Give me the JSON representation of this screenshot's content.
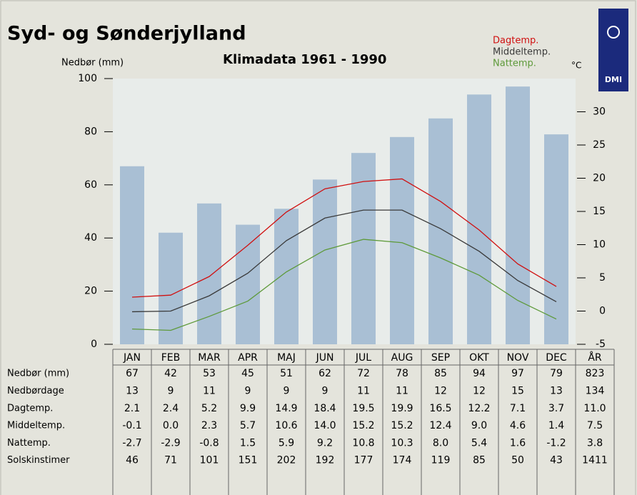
{
  "chart_data": {
    "type": "bar-line",
    "title": "Syd- og Sønderjylland",
    "subtitle": "Klimadata 1961 - 1990",
    "ylabel": "Nedbør (mm)",
    "y2label": "°C",
    "logo": "DMI",
    "categories": [
      "JAN",
      "FEB",
      "MAR",
      "APR",
      "MAJ",
      "JUN",
      "JUL",
      "AUG",
      "SEP",
      "OKT",
      "NOV",
      "DEC"
    ],
    "bars": {
      "color": "#a9bfd4",
      "axis": "y",
      "values": [
        67,
        42,
        53,
        45,
        51,
        62,
        72,
        78,
        85,
        94,
        97,
        79
      ]
    },
    "series": [
      {
        "name": "Dagtemp.",
        "color": "#d01010",
        "axis": "y2",
        "values": [
          2.1,
          2.4,
          5.2,
          9.9,
          14.9,
          18.4,
          19.5,
          19.9,
          16.5,
          12.2,
          7.1,
          3.7
        ]
      },
      {
        "name": "Middeltemp.",
        "color": "#3a3a3a",
        "axis": "y2",
        "values": [
          -0.1,
          0.0,
          2.3,
          5.7,
          10.6,
          14.0,
          15.2,
          15.2,
          12.4,
          9.0,
          4.6,
          1.4
        ]
      },
      {
        "name": "Nattemp.",
        "color": "#5e9a3a",
        "axis": "y2",
        "values": [
          -2.7,
          -2.9,
          -0.8,
          1.5,
          5.9,
          9.2,
          10.8,
          10.3,
          8.0,
          5.4,
          1.6,
          -1.2
        ]
      }
    ],
    "ylim": [
      0,
      100
    ],
    "yticks": [
      0,
      20,
      40,
      60,
      80,
      100
    ],
    "y2lim": [
      -5,
      35
    ],
    "y2ticks": [
      -5,
      0,
      5,
      10,
      15,
      20,
      25,
      30
    ]
  },
  "table": {
    "total_header": "ÅR",
    "rows": [
      {
        "label": "Nedbør (mm)",
        "cells": [
          "67",
          "42",
          "53",
          "45",
          "51",
          "62",
          "72",
          "78",
          "85",
          "94",
          "97",
          "79",
          "823"
        ]
      },
      {
        "label": "Nedbørdage",
        "cells": [
          "13",
          "9",
          "11",
          "9",
          "9",
          "9",
          "11",
          "11",
          "12",
          "12",
          "15",
          "13",
          "134"
        ]
      },
      {
        "label": "Dagtemp.",
        "cells": [
          "2.1",
          "2.4",
          "5.2",
          "9.9",
          "14.9",
          "18.4",
          "19.5",
          "19.9",
          "16.5",
          "12.2",
          "7.1",
          "3.7",
          "11.0"
        ]
      },
      {
        "label": "Middeltemp.",
        "cells": [
          "-0.1",
          "0.0",
          "2.3",
          "5.7",
          "10.6",
          "14.0",
          "15.2",
          "15.2",
          "12.4",
          "9.0",
          "4.6",
          "1.4",
          "7.5"
        ]
      },
      {
        "label": "Nattemp.",
        "cells": [
          "-2.7",
          "-2.9",
          "-0.8",
          "1.5",
          "5.9",
          "9.2",
          "10.8",
          "10.3",
          "8.0",
          "5.4",
          "1.6",
          "-1.2",
          "3.8"
        ]
      },
      {
        "label": "Solskinstimer",
        "cells": [
          "46",
          "71",
          "101",
          "151",
          "202",
          "192",
          "177",
          "174",
          "119",
          "85",
          "50",
          "43",
          "1411"
        ]
      }
    ]
  }
}
